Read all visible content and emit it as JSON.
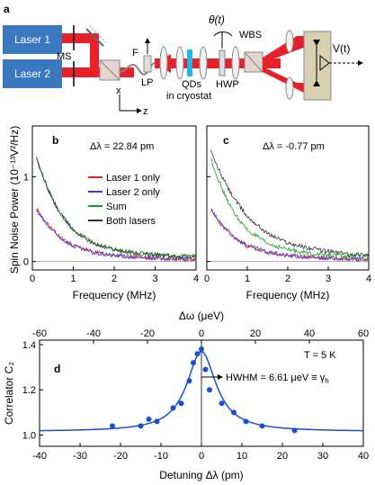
{
  "panel_labels": {
    "a": "a",
    "b": "b",
    "c": "c",
    "d": "d"
  },
  "setup": {
    "laser1": "Laser 1",
    "laser2": "Laser 2",
    "ms": "MS",
    "f": "F",
    "lp": "LP",
    "qds": "QDs",
    "in_cryostat": "in cryostat",
    "hwp": "HWP",
    "wbs": "WBS",
    "theta": "θ(t)",
    "v": "V(t)",
    "axis_x": "x",
    "axis_z": "z",
    "colors": {
      "laser_box": "#3a78c0",
      "beam": "#e8202a",
      "qd_plate": "#25b5e8",
      "detector": "#d8d0b0"
    }
  },
  "noise_panels": {
    "ylabel": "Spin Noise Power (10⁻¹³V²/Hz)",
    "xlabel": "Frequency (MHz)",
    "b_annotation": "Δλ = 22.84 pm",
    "c_annotation": "Δλ = -0.77 pm",
    "legend": [
      "Laser 1 only",
      "Laser 2 only",
      "Sum",
      "Both lasers"
    ],
    "legend_colors": [
      "#e8202a",
      "#3a3ad8",
      "#16a016",
      "#333333"
    ],
    "x_ticks": [
      "0",
      "1",
      "2",
      "3",
      "4"
    ],
    "y_ticks": [
      "0",
      "1"
    ]
  },
  "correlator_panel": {
    "top_axis_label": "Δω (μeV)",
    "bottom_axis_label": "Detuning Δλ (pm)",
    "ylabel": "Correlator C₂",
    "temperature": "T = 5 K",
    "hwhm": "HWHM = 6.61 μeV ≡ γ",
    "hwhm_sub": "h",
    "top_ticks": [
      "-60",
      "-40",
      "-20",
      "0",
      "20",
      "40",
      "60"
    ],
    "bottom_ticks": [
      "-40",
      "-30",
      "-20",
      "-10",
      "0",
      "10",
      "20",
      "30",
      "40"
    ],
    "y_ticks": [
      "1.0",
      "1.2",
      "1.4"
    ]
  },
  "chart_data": [
    {
      "type": "line",
      "panel": "b",
      "xlabel": "Frequency (MHz)",
      "ylabel": "Spin Noise Power (10⁻¹³V²/Hz)",
      "xlim": [
        0,
        4
      ],
      "ylim": [
        -0.1,
        1.6
      ],
      "series": [
        {
          "name": "Laser 1 only",
          "color": "#e8202a",
          "x": [
            0.1,
            0.2,
            0.4,
            0.6,
            0.8,
            1.0,
            1.5,
            2.0,
            2.5,
            3.0,
            3.5,
            4.0
          ],
          "values": [
            0.62,
            0.55,
            0.42,
            0.32,
            0.25,
            0.19,
            0.11,
            0.07,
            0.05,
            0.04,
            0.03,
            0.03
          ]
        },
        {
          "name": "Laser 2 only",
          "color": "#3a3ad8",
          "x": [
            0.1,
            0.2,
            0.4,
            0.6,
            0.8,
            1.0,
            1.5,
            2.0,
            2.5,
            3.0,
            3.5,
            4.0
          ],
          "values": [
            0.6,
            0.53,
            0.41,
            0.31,
            0.24,
            0.18,
            0.1,
            0.07,
            0.05,
            0.04,
            0.03,
            0.03
          ]
        },
        {
          "name": "Sum",
          "color": "#16a016",
          "x": [
            0.1,
            0.2,
            0.4,
            0.6,
            0.8,
            1.0,
            1.5,
            2.0,
            2.5,
            3.0,
            3.5,
            4.0
          ],
          "values": [
            1.22,
            1.08,
            0.83,
            0.63,
            0.49,
            0.37,
            0.21,
            0.14,
            0.1,
            0.08,
            0.06,
            0.06
          ]
        },
        {
          "name": "Both lasers",
          "color": "#333333",
          "x": [
            0.1,
            0.2,
            0.4,
            0.6,
            0.8,
            1.0,
            1.5,
            2.0,
            2.5,
            3.0,
            3.5,
            4.0
          ],
          "values": [
            1.22,
            1.08,
            0.83,
            0.63,
            0.49,
            0.37,
            0.21,
            0.14,
            0.1,
            0.08,
            0.06,
            0.06
          ]
        }
      ]
    },
    {
      "type": "line",
      "panel": "c",
      "xlabel": "Frequency (MHz)",
      "xlim": [
        0,
        4
      ],
      "ylim": [
        -0.1,
        1.6
      ],
      "series": [
        {
          "name": "Laser 1 only",
          "color": "#e8202a",
          "x": [
            0.1,
            0.2,
            0.4,
            0.6,
            0.8,
            1.0,
            1.5,
            2.0,
            2.5,
            3.0,
            3.5,
            4.0
          ],
          "values": [
            0.6,
            0.53,
            0.41,
            0.31,
            0.24,
            0.18,
            0.1,
            0.07,
            0.05,
            0.04,
            0.03,
            0.03
          ]
        },
        {
          "name": "Laser 2 only",
          "color": "#3a3ad8",
          "x": [
            0.1,
            0.2,
            0.4,
            0.6,
            0.8,
            1.0,
            1.5,
            2.0,
            2.5,
            3.0,
            3.5,
            4.0
          ],
          "values": [
            0.62,
            0.54,
            0.42,
            0.32,
            0.25,
            0.19,
            0.11,
            0.07,
            0.05,
            0.04,
            0.03,
            0.03
          ]
        },
        {
          "name": "Sum",
          "color": "#16a016",
          "x": [
            0.1,
            0.2,
            0.4,
            0.6,
            0.8,
            1.0,
            1.5,
            2.0,
            2.5,
            3.0,
            3.5,
            4.0
          ],
          "values": [
            1.22,
            1.07,
            0.83,
            0.63,
            0.49,
            0.37,
            0.21,
            0.14,
            0.1,
            0.08,
            0.06,
            0.06
          ]
        },
        {
          "name": "Both lasers",
          "color": "#333333",
          "x": [
            0.1,
            0.2,
            0.4,
            0.6,
            0.8,
            1.0,
            1.5,
            2.0,
            2.5,
            3.0,
            3.5,
            4.0
          ],
          "values": [
            1.3,
            1.18,
            0.98,
            0.8,
            0.66,
            0.53,
            0.33,
            0.22,
            0.16,
            0.12,
            0.09,
            0.08
          ]
        }
      ]
    },
    {
      "type": "scatter",
      "panel": "d",
      "xlabel": "Detuning Δλ (pm)",
      "ylabel": "Correlator C₂",
      "xlim": [
        -40,
        40
      ],
      "ylim": [
        0.95,
        1.42
      ],
      "secondary_x_label": "Δω (μeV)",
      "secondary_xlim": [
        -60,
        60
      ],
      "series": [
        {
          "name": "data",
          "color": "#1a4fd0",
          "x": [
            -22,
            -15,
            -13,
            -11,
            -7,
            -5,
            -3,
            -2,
            -1,
            0,
            1,
            2,
            5,
            8,
            11,
            15,
            23
          ],
          "values": [
            1.04,
            1.04,
            1.07,
            1.06,
            1.12,
            1.14,
            1.24,
            1.32,
            1.36,
            1.38,
            1.29,
            1.2,
            1.14,
            1.1,
            1.06,
            1.04,
            1.02
          ]
        },
        {
          "name": "fit",
          "color": "#1a4fd0",
          "x": [
            -40,
            -30,
            -20,
            -15,
            -10,
            -7,
            -5,
            -3,
            -2,
            -1,
            0,
            1,
            2,
            3,
            5,
            7,
            10,
            15,
            20,
            30,
            40
          ],
          "values": [
            1.02,
            1.025,
            1.04,
            1.05,
            1.08,
            1.11,
            1.15,
            1.22,
            1.28,
            1.34,
            1.37,
            1.34,
            1.28,
            1.22,
            1.15,
            1.11,
            1.08,
            1.05,
            1.04,
            1.025,
            1.02
          ]
        }
      ]
    }
  ]
}
